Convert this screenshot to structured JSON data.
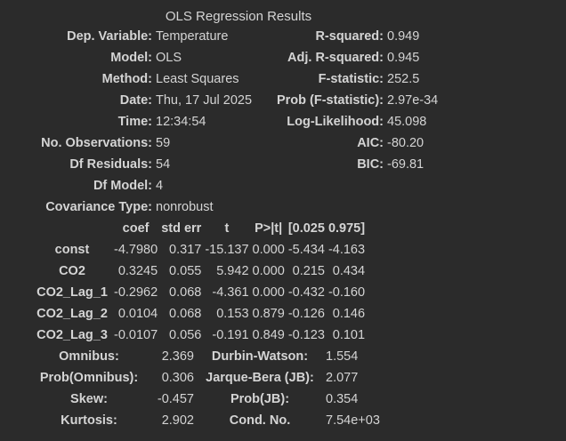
{
  "title": "OLS Regression Results",
  "summary": [
    {
      "l1": "Dep. Variable:",
      "v1": "Temperature",
      "l2": "R-squared:",
      "v2": "0.949"
    },
    {
      "l1": "Model:",
      "v1": "OLS",
      "l2": "Adj. R-squared:",
      "v2": "0.945"
    },
    {
      "l1": "Method:",
      "v1": "Least Squares",
      "l2": "F-statistic:",
      "v2": "252.5"
    },
    {
      "l1": "Date:",
      "v1": "Thu, 17 Jul 2025",
      "l2": "Prob (F-statistic):",
      "v2": "2.97e-34"
    },
    {
      "l1": "Time:",
      "v1": "12:34:54",
      "l2": "Log-Likelihood:",
      "v2": "45.098"
    },
    {
      "l1": "No. Observations:",
      "v1": "59",
      "l2": "AIC:",
      "v2": "-80.20"
    },
    {
      "l1": "Df Residuals:",
      "v1": "54",
      "l2": "BIC:",
      "v2": "-69.81"
    },
    {
      "l1": "Df Model:",
      "v1": "4",
      "l2": "",
      "v2": ""
    },
    {
      "l1": "Covariance Type:",
      "v1": "nonrobust",
      "l2": "",
      "v2": ""
    }
  ],
  "coef_header": [
    "coef",
    "std err",
    "t",
    "P>|t|",
    "[0.025",
    "0.975]"
  ],
  "coef_rows": [
    {
      "name": "const",
      "vals": [
        "-4.7980",
        "0.317",
        "-15.137",
        "0.000",
        "-5.434",
        "-4.163"
      ]
    },
    {
      "name": "CO2",
      "vals": [
        "0.3245",
        "0.055",
        "5.942",
        "0.000",
        "0.215",
        "0.434"
      ]
    },
    {
      "name": "CO2_Lag_1",
      "vals": [
        "-0.2962",
        "0.068",
        "-4.361",
        "0.000",
        "-0.432",
        "-0.160"
      ]
    },
    {
      "name": "CO2_Lag_2",
      "vals": [
        "0.0104",
        "0.068",
        "0.153",
        "0.879",
        "-0.126",
        "0.146"
      ]
    },
    {
      "name": "CO2_Lag_3",
      "vals": [
        "-0.0107",
        "0.056",
        "-0.191",
        "0.849",
        "-0.123",
        "0.101"
      ]
    }
  ],
  "diagnostics": [
    {
      "l1": "Omnibus:",
      "v1": "2.369",
      "l2": "Durbin-Watson:",
      "v2": "1.554"
    },
    {
      "l1": "Prob(Omnibus):",
      "v1": "0.306",
      "l2": "Jarque-Bera (JB):",
      "v2": "2.077"
    },
    {
      "l1": "Skew:",
      "v1": "-0.457",
      "l2": "Prob(JB):",
      "v2": "0.354"
    },
    {
      "l1": "Kurtosis:",
      "v1": "2.902",
      "l2": "Cond. No.",
      "v2": "7.54e+03"
    }
  ]
}
